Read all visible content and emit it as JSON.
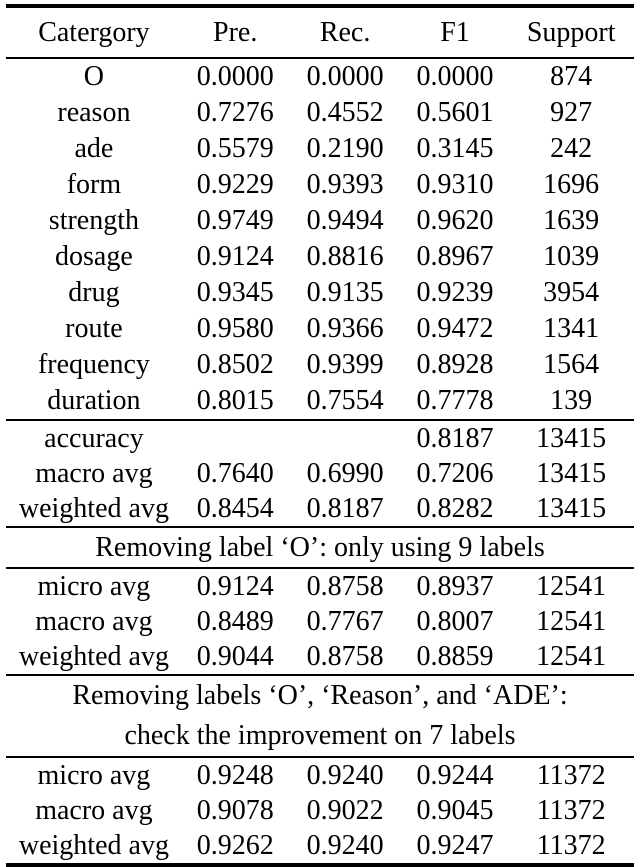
{
  "table": {
    "headers": [
      "Catergory",
      "Pre.",
      "Rec.",
      "F1",
      "Support"
    ],
    "per_label_rows": [
      [
        "O",
        "0.0000",
        "0.0000",
        "0.0000",
        "874"
      ],
      [
        "reason",
        "0.7276",
        "0.4552",
        "0.5601",
        "927"
      ],
      [
        "ade",
        "0.5579",
        "0.2190",
        "0.3145",
        "242"
      ],
      [
        "form",
        "0.9229",
        "0.9393",
        "0.9310",
        "1696"
      ],
      [
        "strength",
        "0.9749",
        "0.9494",
        "0.9620",
        "1639"
      ],
      [
        "dosage",
        "0.9124",
        "0.8816",
        "0.8967",
        "1039"
      ],
      [
        "drug",
        "0.9345",
        "0.9135",
        "0.9239",
        "3954"
      ],
      [
        "route",
        "0.9580",
        "0.9366",
        "0.9472",
        "1341"
      ],
      [
        "frequency",
        "0.8502",
        "0.9399",
        "0.8928",
        "1564"
      ],
      [
        "duration",
        "0.8015",
        "0.7554",
        "0.7778",
        "139"
      ]
    ],
    "overall_summary_rows": [
      [
        "accuracy",
        "",
        "",
        "0.8187",
        "13415"
      ],
      [
        "macro avg",
        "0.7640",
        "0.6990",
        "0.7206",
        "13415"
      ],
      [
        "weighted avg",
        "0.8454",
        "0.8187",
        "0.8282",
        "13415"
      ]
    ],
    "note_9_labels": "Removing label ‘O’: only using 9 labels",
    "summary_9_labels_rows": [
      [
        "micro avg",
        "0.9124",
        "0.8758",
        "0.8937",
        "12541"
      ],
      [
        "macro avg",
        "0.8489",
        "0.7767",
        "0.8007",
        "12541"
      ],
      [
        "weighted avg",
        "0.9044",
        "0.8758",
        "0.8859",
        "12541"
      ]
    ],
    "note_7_labels_line1": "Removing labels ‘O’, ‘Reason’, and ‘ADE’:",
    "note_7_labels_line2": "check the improvement on 7 labels",
    "summary_7_labels_rows": [
      [
        "micro avg",
        "0.9248",
        "0.9240",
        "0.9244",
        "11372"
      ],
      [
        "macro avg",
        "0.9078",
        "0.9022",
        "0.9045",
        "11372"
      ],
      [
        "weighted avg",
        "0.9262",
        "0.9240",
        "0.9247",
        "11372"
      ]
    ],
    "colors": {
      "text": "#000000",
      "background": "#ffffff",
      "rule": "#000000"
    }
  }
}
